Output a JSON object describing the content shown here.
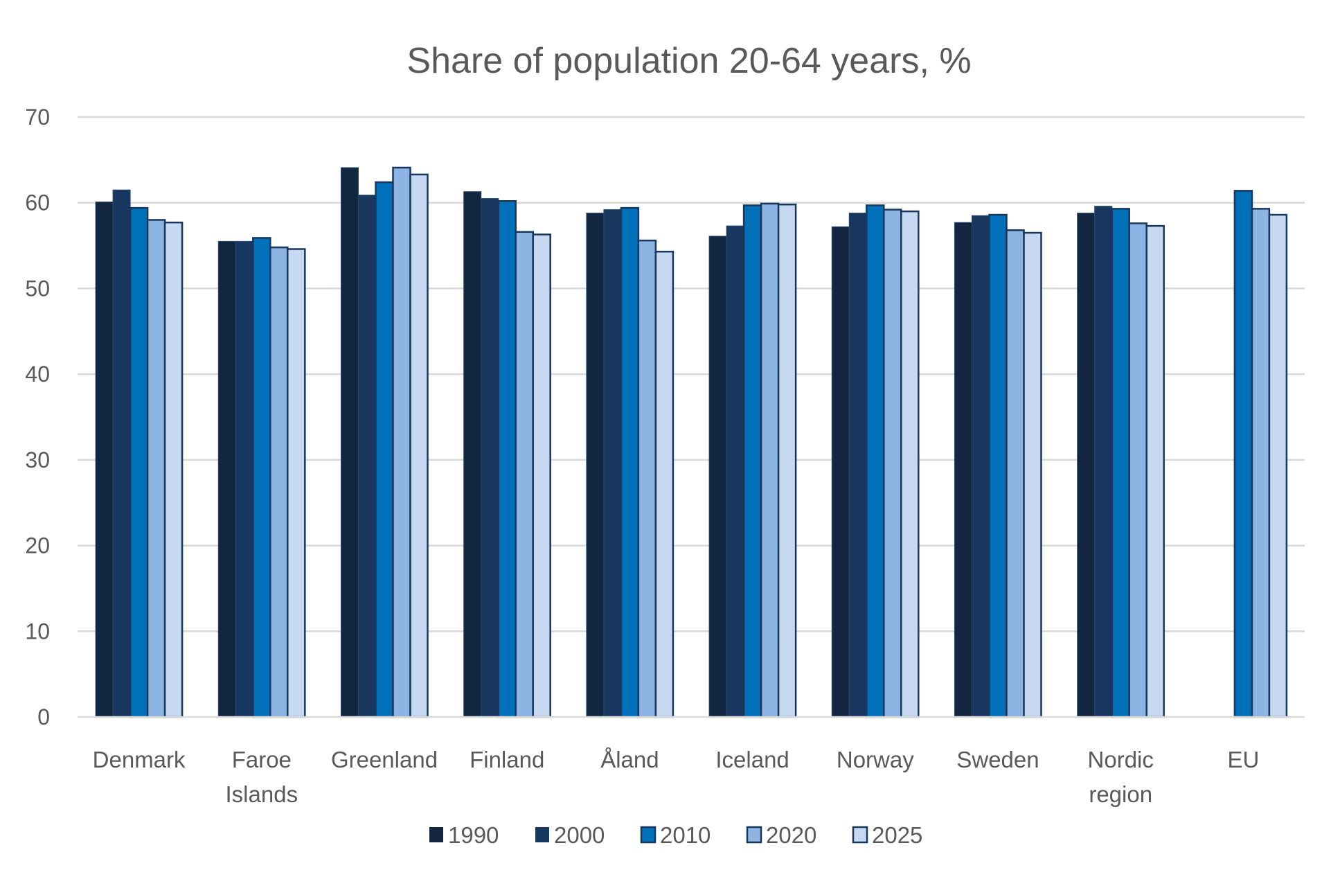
{
  "chart_data": {
    "type": "bar",
    "title": "Share of population 20-64 years, %",
    "xlabel": "",
    "ylabel": "",
    "ylim": [
      0,
      70
    ],
    "yticks": [
      0,
      10,
      20,
      30,
      40,
      50,
      60,
      70
    ],
    "grid": true,
    "legend_position": "bottom",
    "categories": [
      [
        "Denmark"
      ],
      [
        "Faroe",
        "Islands"
      ],
      [
        "Greenland"
      ],
      [
        "Finland"
      ],
      [
        "Åland"
      ],
      [
        "Iceland"
      ],
      [
        "Norway"
      ],
      [
        "Sweden"
      ],
      [
        "Nordic",
        "region"
      ],
      [
        "EU"
      ]
    ],
    "category_names": [
      "Denmark",
      "Faroe Islands",
      "Greenland",
      "Finland",
      "Åland",
      "Iceland",
      "Norway",
      "Sweden",
      "Nordic region",
      "EU"
    ],
    "series": [
      {
        "name": "1990",
        "color": "#12263f",
        "outline": false,
        "values": [
          60.1,
          55.5,
          64.1,
          61.3,
          58.8,
          56.1,
          57.2,
          57.7,
          58.8,
          null
        ]
      },
      {
        "name": "2000",
        "color": "#17375e",
        "outline": false,
        "values": [
          61.5,
          55.5,
          60.9,
          60.5,
          59.2,
          57.3,
          58.8,
          58.5,
          59.6,
          null
        ]
      },
      {
        "name": "2010",
        "color": "#0070b8",
        "outline": true,
        "values": [
          59.4,
          55.9,
          62.4,
          60.2,
          59.4,
          59.7,
          59.7,
          58.6,
          59.3,
          61.4
        ]
      },
      {
        "name": "2020",
        "color": "#8eb4e3",
        "outline": true,
        "values": [
          58.0,
          54.8,
          64.1,
          56.6,
          55.6,
          59.9,
          59.2,
          56.8,
          57.6,
          59.3
        ]
      },
      {
        "name": "2025",
        "color": "#c6d9f1",
        "outline": true,
        "values": [
          57.7,
          54.6,
          63.3,
          56.3,
          54.3,
          59.8,
          59.0,
          56.5,
          57.3,
          58.6
        ]
      }
    ],
    "outline_color": "#17375e"
  }
}
